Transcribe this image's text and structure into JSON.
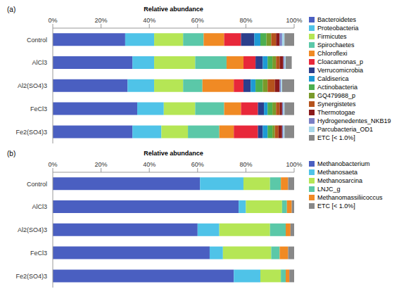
{
  "chart_data": [
    {
      "type": "bar",
      "title": "(a)",
      "x_label": "Relative abundance",
      "orientation": "horizontal",
      "stacked": true,
      "legend": "right",
      "categories": [
        "Control",
        "AlCl3",
        "Al2(SO4)3",
        "FeCl3",
        "Fe2(SO4)3"
      ],
      "xlim": [
        0,
        100
      ],
      "xticks": [
        {
          "value": 0,
          "label": "0%"
        },
        {
          "value": 20,
          "label": "20%"
        },
        {
          "value": 40,
          "label": "40%"
        },
        {
          "value": 60,
          "label": "60%"
        },
        {
          "value": 80,
          "label": "80%"
        },
        {
          "value": 100,
          "label": "100%"
        }
      ],
      "series": [
        {
          "name": "Bacteroidetes",
          "color": "#4a5fc1",
          "values": [
            30,
            33,
            31,
            35,
            33
          ]
        },
        {
          "name": "Proteobacteria",
          "color": "#4fc3e8",
          "values": [
            12,
            9,
            11,
            11,
            12
          ]
        },
        {
          "name": "Firmicutes",
          "color": "#b5e655",
          "values": [
            12,
            17,
            12,
            13,
            11
          ]
        },
        {
          "name": "Spirochaetes",
          "color": "#5bc8a8",
          "values": [
            8.5,
            13,
            8,
            12,
            13
          ]
        },
        {
          "name": "Chloroflexi",
          "color": "#f08a24",
          "values": [
            8.5,
            7,
            13,
            7,
            6
          ]
        },
        {
          "name": "Cloacamonas_p",
          "color": "#e8283a",
          "values": [
            7,
            5,
            4,
            7,
            10
          ]
        },
        {
          "name": "Verrucomicrobia",
          "color": "#2b3f8c",
          "values": [
            5.5,
            3,
            3,
            2.5,
            2
          ]
        },
        {
          "name": "Caldiserica",
          "color": "#1e9ad6",
          "values": [
            2.5,
            2,
            2,
            1.5,
            2
          ]
        },
        {
          "name": "Actinobacteria",
          "color": "#4caf50",
          "values": [
            2.5,
            2,
            3,
            2,
            2
          ]
        },
        {
          "name": "GQ479988_p",
          "color": "#7a9a2a",
          "values": [
            2,
            1.5,
            2,
            1.5,
            1
          ]
        },
        {
          "name": "Synergistetes",
          "color": "#b5531c",
          "values": [
            2,
            1.5,
            3,
            1.5,
            1.5
          ]
        },
        {
          "name": "Thermotogae",
          "color": "#8b1a1a",
          "values": [
            1.5,
            1.5,
            2,
            1,
            1.5
          ]
        },
        {
          "name": "Hydrogenedentes_NKB19",
          "color": "#7b7fc4",
          "values": [
            1,
            0.5,
            0.5,
            0.5,
            0.5
          ]
        },
        {
          "name": "Parcubacteria_OD1",
          "color": "#a8d8ea",
          "values": [
            1,
            0.5,
            0.5,
            0.5,
            0.5
          ]
        },
        {
          "name": "ETC [< 1.0%]",
          "color": "#888888",
          "values": [
            4,
            2.5,
            5,
            4,
            4
          ]
        }
      ]
    },
    {
      "type": "bar",
      "title": "(b)",
      "x_label": "Relative abundance",
      "orientation": "horizontal",
      "stacked": true,
      "legend": "right",
      "categories": [
        "Control",
        "AlCl3",
        "Al2(SO4)3",
        "FeCl3",
        "Fe2(SO4)3"
      ],
      "xlim": [
        0,
        100
      ],
      "xticks": [
        {
          "value": 0,
          "label": "0%"
        },
        {
          "value": 20,
          "label": "20%"
        },
        {
          "value": 40,
          "label": "40%"
        },
        {
          "value": 60,
          "label": "60%"
        },
        {
          "value": 80,
          "label": "80%"
        },
        {
          "value": 100,
          "label": "100%"
        }
      ],
      "series": [
        {
          "name": "Methanobacterium",
          "color": "#4a5fc1",
          "values": [
            61,
            77,
            60,
            65,
            75
          ]
        },
        {
          "name": "Methanosaeta",
          "color": "#4fc3e8",
          "values": [
            18,
            3,
            9,
            5.5,
            11
          ]
        },
        {
          "name": "Methanosarcina",
          "color": "#b5e655",
          "values": [
            11,
            15,
            21,
            20,
            8.5
          ]
        },
        {
          "name": "LNJC_g",
          "color": "#5bc8a8",
          "values": [
            4.5,
            2,
            6.5,
            3.5,
            2
          ]
        },
        {
          "name": "Methanomassiliicoccus",
          "color": "#f08a24",
          "values": [
            3,
            2,
            2,
            3.5,
            1.5
          ]
        },
        {
          "name": "ETC [< 1.0%]",
          "color": "#888888",
          "values": [
            2.5,
            1,
            1.5,
            2.5,
            2
          ]
        }
      ]
    }
  ]
}
